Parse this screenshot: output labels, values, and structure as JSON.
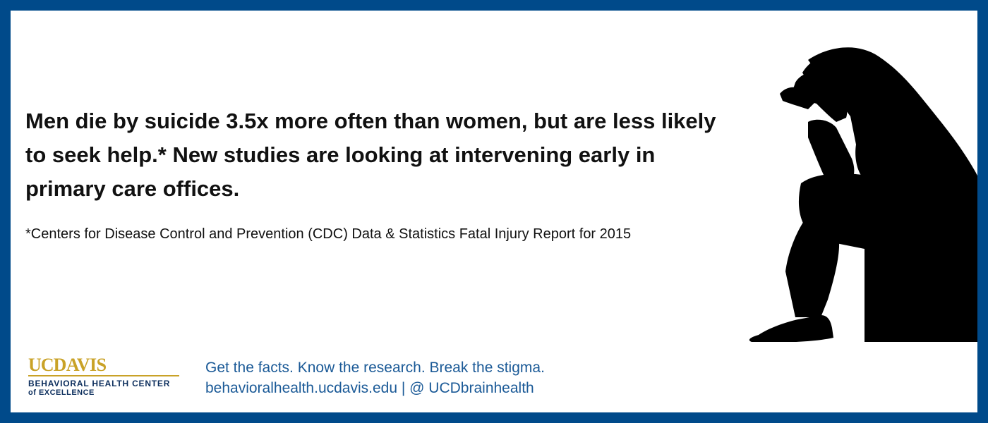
{
  "headline": "Men die by suicide 3.5x more often than women, but are less likely to seek help.* New studies are looking at intervening early in primary care offices.",
  "footnote": "*Centers for Disease Control and Prevention (CDC) Data & Statistics Fatal Injury Report for 2015",
  "logo": {
    "uc": "UC",
    "davis": "DAVIS",
    "line1": "BEHAVIORAL HEALTH CENTER",
    "line2": "of EXCELLENCE"
  },
  "tagline": {
    "line1": "Get the facts. Know the research. Break the stigma.",
    "line2": "behavioralhealth.ucdavis.edu | @ UCDbrainhealth"
  },
  "image": {
    "icon": "sitting-man-silhouette-icon"
  },
  "colors": {
    "border": "#004a8a",
    "logo_gold": "#c9a227",
    "logo_navy": "#0b2d5c",
    "tagline_blue": "#1b5a97"
  }
}
